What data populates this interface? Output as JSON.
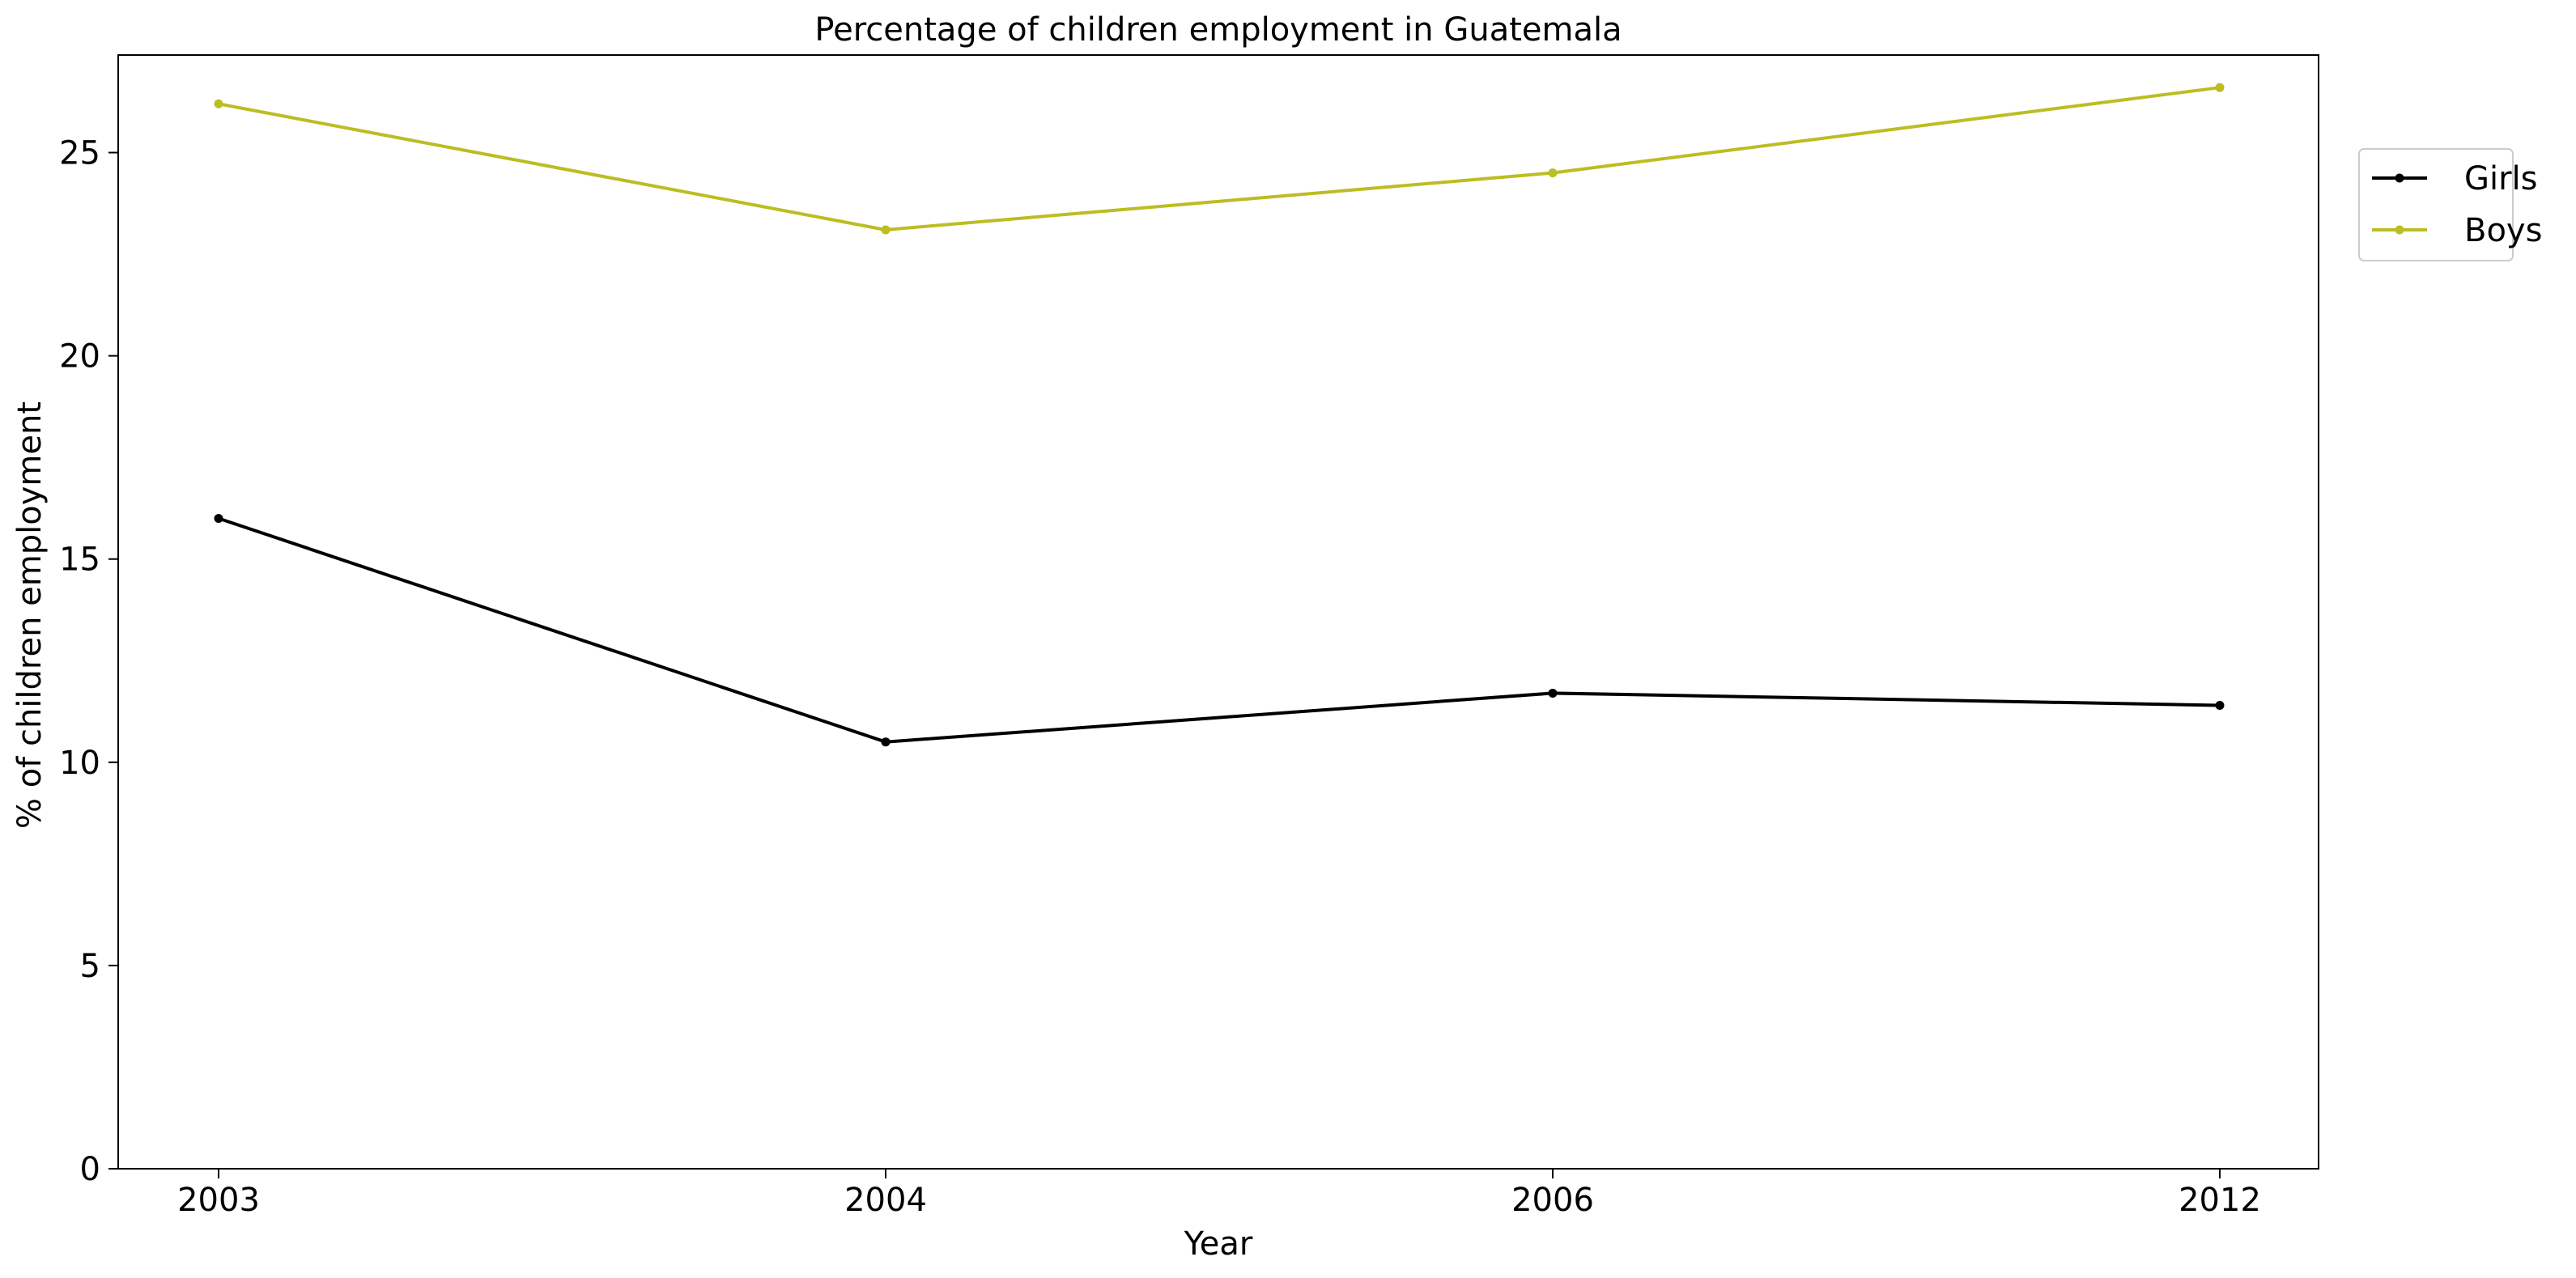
{
  "chart_data": {
    "type": "line",
    "title": "Percentage of children employment in Guatemala",
    "xlabel": "Year",
    "ylabel": "% of children employment",
    "categories": [
      "2003",
      "2004",
      "2006",
      "2012"
    ],
    "series": [
      {
        "name": "Girls",
        "color": "#000000",
        "values": [
          16.0,
          10.5,
          11.7,
          11.4
        ]
      },
      {
        "name": "Boys",
        "color": "#bcbd22",
        "values": [
          26.2,
          23.1,
          24.5,
          26.6
        ]
      }
    ],
    "ylim": [
      0,
      27.4
    ],
    "yticks": [
      0,
      5,
      10,
      15,
      20,
      25
    ],
    "grid": false,
    "legend_position": "outside-top-right"
  }
}
